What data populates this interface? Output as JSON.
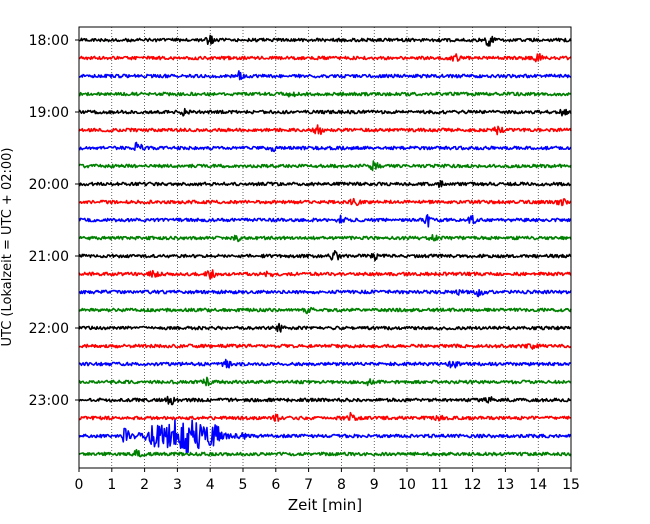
{
  "chart_data": {
    "type": "line",
    "xlabel": "Zeit  [min]",
    "ylabel": "UTC (Lokalzeit = UTC + 02:00)",
    "xlim": [
      0,
      15
    ],
    "x_ticks": [
      0,
      1,
      2,
      3,
      4,
      5,
      6,
      7,
      8,
      9,
      10,
      11,
      12,
      13,
      14,
      15
    ],
    "x_tick_labels": [
      "0",
      "1",
      "2",
      "3",
      "4",
      "5",
      "6",
      "7",
      "8",
      "9",
      "10",
      "11",
      "12",
      "13",
      "14",
      "15"
    ],
    "y_tick_labels": [
      "18:00",
      "19:00",
      "20:00",
      "21:00",
      "22:00",
      "23:00"
    ],
    "y_ticks_at_trace_index": [
      0,
      4,
      8,
      12,
      16,
      20
    ],
    "grid": "vertical dotted",
    "trace_colors": [
      "#000000",
      "#ff0000",
      "#0000ff",
      "#008000"
    ],
    "traces": [
      {
        "start": "18:00",
        "color": "#000000",
        "bursts": [
          {
            "x": 4.0,
            "amp": 0.25
          },
          {
            "x": 12.5,
            "amp": 0.3
          }
        ]
      },
      {
        "start": "18:15",
        "color": "#ff0000",
        "bursts": [
          {
            "x": 11.5,
            "amp": 0.2
          },
          {
            "x": 14.0,
            "amp": 0.2
          }
        ]
      },
      {
        "start": "18:30",
        "color": "#0000ff",
        "bursts": [
          {
            "x": 4.9,
            "amp": 0.3
          }
        ]
      },
      {
        "start": "18:45",
        "color": "#008000",
        "bursts": [
          {
            "x": 6.5,
            "amp": 0.15
          }
        ]
      },
      {
        "start": "19:00",
        "color": "#000000",
        "bursts": [
          {
            "x": 3.2,
            "amp": 0.2
          },
          {
            "x": 14.8,
            "amp": 0.2
          }
        ]
      },
      {
        "start": "19:15",
        "color": "#ff0000",
        "bursts": [
          {
            "x": 7.3,
            "amp": 0.25
          },
          {
            "x": 12.8,
            "amp": 0.25
          }
        ]
      },
      {
        "start": "19:30",
        "color": "#0000ff",
        "bursts": [
          {
            "x": 1.8,
            "amp": 0.35
          },
          {
            "x": 5.9,
            "amp": 0.15
          }
        ]
      },
      {
        "start": "19:45",
        "color": "#008000",
        "bursts": [
          {
            "x": 9.0,
            "amp": 0.25
          }
        ]
      },
      {
        "start": "20:00",
        "color": "#000000",
        "bursts": [
          {
            "x": 11.0,
            "amp": 0.15
          }
        ]
      },
      {
        "start": "20:15",
        "color": "#ff0000",
        "bursts": [
          {
            "x": 8.4,
            "amp": 0.25
          },
          {
            "x": 14.7,
            "amp": 0.2
          }
        ]
      },
      {
        "start": "20:30",
        "color": "#0000ff",
        "bursts": [
          {
            "x": 10.6,
            "amp": 0.4
          },
          {
            "x": 8.0,
            "amp": 0.2
          },
          {
            "x": 12.0,
            "amp": 0.2
          }
        ]
      },
      {
        "start": "20:45",
        "color": "#008000",
        "bursts": [
          {
            "x": 4.8,
            "amp": 0.15
          },
          {
            "x": 10.8,
            "amp": 0.15
          }
        ]
      },
      {
        "start": "21:00",
        "color": "#000000",
        "bursts": [
          {
            "x": 7.8,
            "amp": 0.35
          },
          {
            "x": 9.0,
            "amp": 0.2
          }
        ]
      },
      {
        "start": "21:15",
        "color": "#ff0000",
        "bursts": [
          {
            "x": 4.0,
            "amp": 0.35
          },
          {
            "x": 2.3,
            "amp": 0.2
          },
          {
            "x": 5.8,
            "amp": 0.15
          }
        ]
      },
      {
        "start": "21:30",
        "color": "#0000ff",
        "bursts": [
          {
            "x": 12.2,
            "amp": 0.2
          },
          {
            "x": 11.6,
            "amp": 0.15
          }
        ]
      },
      {
        "start": "21:45",
        "color": "#008000",
        "bursts": [
          {
            "x": 7.0,
            "amp": 0.15
          }
        ]
      },
      {
        "start": "22:00",
        "color": "#000000",
        "bursts": [
          {
            "x": 6.1,
            "amp": 0.2
          }
        ]
      },
      {
        "start": "22:15",
        "color": "#ff0000",
        "bursts": [
          {
            "x": 13.8,
            "amp": 0.15
          }
        ]
      },
      {
        "start": "22:30",
        "color": "#0000ff",
        "bursts": [
          {
            "x": 4.5,
            "amp": 0.2
          },
          {
            "x": 11.4,
            "amp": 0.2
          }
        ]
      },
      {
        "start": "22:45",
        "color": "#008000",
        "bursts": [
          {
            "x": 3.9,
            "amp": 0.2
          },
          {
            "x": 8.8,
            "amp": 0.15
          }
        ]
      },
      {
        "start": "23:00",
        "color": "#000000",
        "bursts": [
          {
            "x": 2.8,
            "amp": 0.25
          },
          {
            "x": 12.5,
            "amp": 0.15
          }
        ]
      },
      {
        "start": "23:15",
        "color": "#ff0000",
        "bursts": [
          {
            "x": 8.3,
            "amp": 0.25
          },
          {
            "x": 11.0,
            "amp": 0.2
          },
          {
            "x": 6.0,
            "amp": 0.15
          }
        ]
      },
      {
        "start": "23:30",
        "color": "#0000ff",
        "bursts": [
          {
            "x": 3.2,
            "amp": 1.0
          },
          {
            "x": 1.4,
            "amp": 0.4
          },
          {
            "x": 2.3,
            "amp": 0.4
          },
          {
            "x": 4.2,
            "amp": 0.35
          },
          {
            "x": 5.0,
            "amp": 0.2
          }
        ]
      },
      {
        "start": "23:45",
        "color": "#008000",
        "bursts": [
          {
            "x": 1.8,
            "amp": 0.2
          }
        ]
      }
    ]
  }
}
